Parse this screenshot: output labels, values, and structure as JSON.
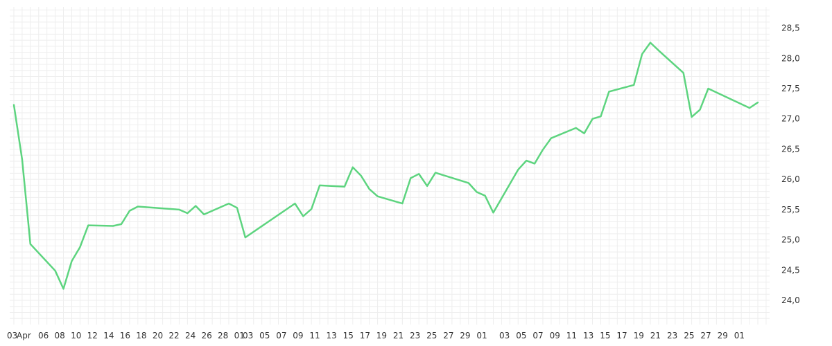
{
  "chart_data": {
    "type": "line",
    "title": "",
    "xlabel": "",
    "ylabel": "",
    "x_tick_labels": [
      "03",
      "Apr",
      "06",
      "08",
      "10",
      "12",
      "14",
      "16",
      "18",
      "20",
      "22",
      "24",
      "26",
      "28",
      "01",
      "03",
      "05",
      "07",
      "09",
      "11",
      "13",
      "15",
      "17",
      "19",
      "21",
      "23",
      "25",
      "27",
      "29",
      "01",
      "03",
      "05",
      "07",
      "09",
      "11",
      "13",
      "15",
      "17",
      "19",
      "21",
      "23",
      "25",
      "27",
      "29",
      "01"
    ],
    "y_tick_labels": [
      "24,0",
      "24,5",
      "25,0",
      "25,5",
      "26,0",
      "26,5",
      "27,0",
      "27,5",
      "28,0",
      "28,5"
    ],
    "y_ticks": [
      24.0,
      24.5,
      25.0,
      25.5,
      26.0,
      26.5,
      27.0,
      27.5,
      28.0,
      28.5
    ],
    "ylim": [
      23.6,
      28.85
    ],
    "y_axis_position": "right",
    "grid": true,
    "line_color": "#5dd47f",
    "series": [
      {
        "x": [
          "2025-04-03",
          "2025-04-04",
          "2025-04-05",
          "2025-04-08",
          "2025-04-09",
          "2025-04-10",
          "2025-04-11",
          "2025-04-12",
          "2025-04-15",
          "2025-04-16",
          "2025-04-17",
          "2025-04-18",
          "2025-04-23",
          "2025-04-24",
          "2025-04-25",
          "2025-04-26",
          "2025-04-29",
          "2025-04-30",
          "2025-05-01",
          "2025-05-07",
          "2025-05-08",
          "2025-05-09",
          "2025-05-10",
          "2025-05-13",
          "2025-05-14",
          "2025-05-15",
          "2025-05-16",
          "2025-05-17",
          "2025-05-20",
          "2025-05-21",
          "2025-05-22",
          "2025-05-23",
          "2025-05-24",
          "2025-05-28",
          "2025-05-29",
          "2025-05-30",
          "2025-05-31",
          "2025-06-03",
          "2025-06-04",
          "2025-06-05",
          "2025-06-06",
          "2025-06-07",
          "2025-06-10",
          "2025-06-11",
          "2025-06-12",
          "2025-06-13",
          "2025-06-14",
          "2025-06-17",
          "2025-06-18",
          "2025-06-19",
          "2025-06-20",
          "2025-06-23",
          "2025-06-24",
          "2025-06-25",
          "2025-06-26",
          "2025-07-01",
          "2025-07-02"
        ],
        "y": [
          27.23,
          26.33,
          24.93,
          24.49,
          24.19,
          24.65,
          24.88,
          25.24,
          25.23,
          25.26,
          25.48,
          25.55,
          25.5,
          25.44,
          25.56,
          25.42,
          25.6,
          25.53,
          25.04,
          25.6,
          25.39,
          25.51,
          25.9,
          25.88,
          26.2,
          26.06,
          25.84,
          25.72,
          25.6,
          26.02,
          26.09,
          25.89,
          26.11,
          25.94,
          25.79,
          25.73,
          25.45,
          26.16,
          26.31,
          26.26,
          26.49,
          26.68,
          26.85,
          26.76,
          27.0,
          27.04,
          27.45,
          27.56,
          28.07,
          28.26,
          28.13,
          27.76,
          27.03,
          27.15,
          27.5,
          27.18,
          27.27
        ]
      }
    ]
  }
}
